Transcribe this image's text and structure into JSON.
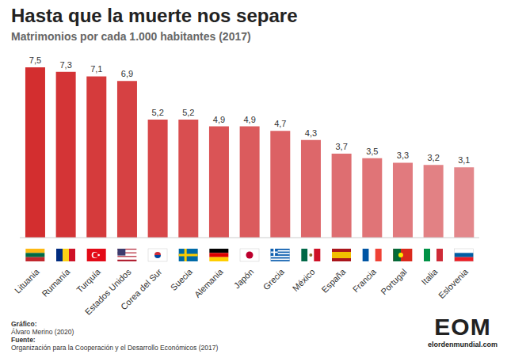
{
  "chart_data": {
    "type": "bar",
    "title": "Hasta que la muerte nos separe",
    "subtitle": "Matrimonios por cada 1.000 habitantes (2017)",
    "categories": [
      "Lituania",
      "Rumanía",
      "Turquía",
      "Estados Unidos",
      "Corea del Sur",
      "Suecia",
      "Alemania",
      "Japón",
      "Grecia",
      "México",
      "España",
      "Francia",
      "Portugal",
      "Italia",
      "Eslovenia"
    ],
    "values": [
      7.5,
      7.3,
      7.1,
      6.9,
      5.2,
      5.2,
      4.9,
      4.9,
      4.7,
      4.3,
      3.7,
      3.5,
      3.3,
      3.2,
      3.1
    ],
    "value_labels": [
      "7,5",
      "7,3",
      "7,1",
      "6,9",
      "5,2",
      "5,2",
      "4,9",
      "4,9",
      "4,7",
      "4,3",
      "3,7",
      "3,5",
      "3,3",
      "3,2",
      "3,1"
    ],
    "colors": [
      "#d32e2f",
      "#d43436",
      "#d53b3c",
      "#d64143",
      "#d84749",
      "#d94e50",
      "#da5456",
      "#db5b5d",
      "#dc6164",
      "#dd676a",
      "#de6e71",
      "#e07477",
      "#e17a7e",
      "#e28184",
      "#e3878b"
    ],
    "ylim": [
      0,
      7.5
    ],
    "data_labels": true,
    "tick_labels": "x",
    "grid": false,
    "annotations": [
      "Gráfico:",
      "Álvaro Merino (2020)",
      "Fuente:",
      "Organización para la Cooperación y el Desarrollo Económicos (2017)",
      "EOM",
      "elordenmundial.com"
    ]
  }
}
